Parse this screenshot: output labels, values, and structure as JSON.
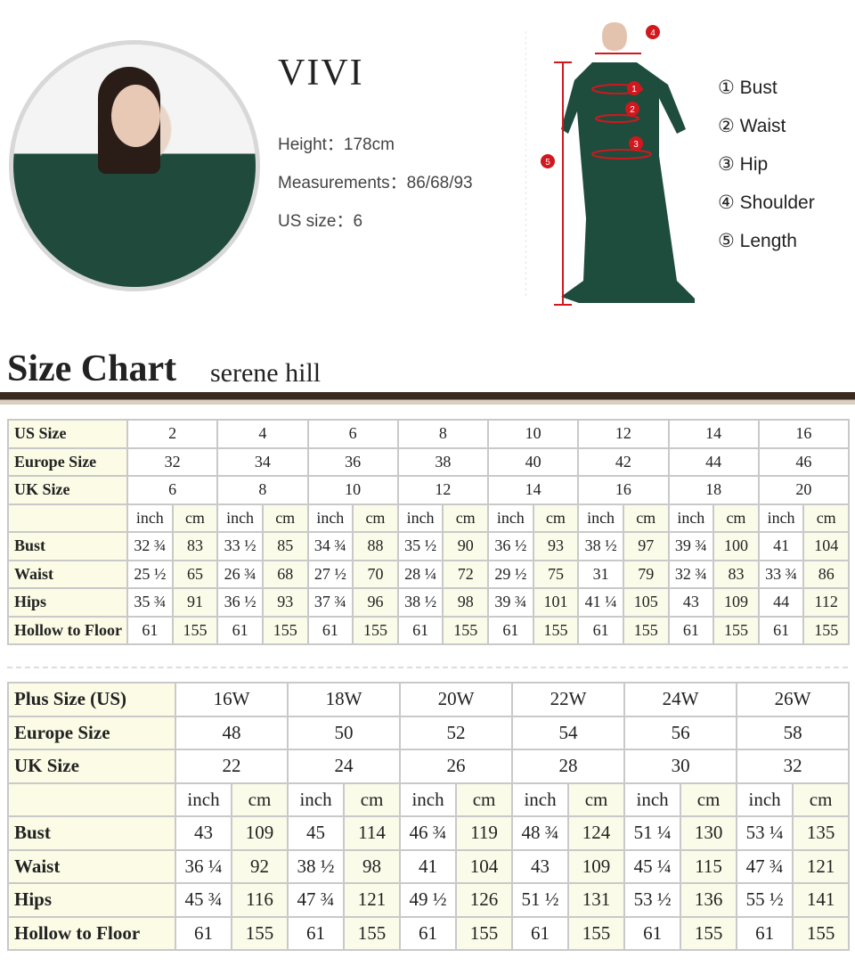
{
  "model": {
    "name": "VIVI",
    "height": "Height：178cm",
    "measurements": "Measurements：86/68/93",
    "us_size": "US size：6"
  },
  "measure_legend": [
    "① Bust",
    "② Waist",
    "③ Hip",
    "④ Shoulder",
    "⑤ Length"
  ],
  "figure_markers": [
    "1",
    "2",
    "3",
    "4",
    "5"
  ],
  "accent_color": "#d0181e",
  "size_chart": {
    "title": "Size Chart",
    "subtitle": "serene hill"
  },
  "standard_table": {
    "size_rows": [
      {
        "label": "US Size",
        "values": [
          "2",
          "4",
          "6",
          "8",
          "10",
          "12",
          "14",
          "16"
        ]
      },
      {
        "label": "Europe Size",
        "values": [
          "32",
          "34",
          "36",
          "38",
          "40",
          "42",
          "44",
          "46"
        ]
      },
      {
        "label": "UK Size",
        "values": [
          "6",
          "8",
          "10",
          "12",
          "14",
          "16",
          "18",
          "20"
        ]
      }
    ],
    "unit_row": [
      "inch",
      "cm"
    ],
    "measure_rows": [
      {
        "label": "Bust",
        "values": [
          "32 ¾",
          "83",
          "33 ½",
          "85",
          "34 ¾",
          "88",
          "35 ½",
          "90",
          "36 ½",
          "93",
          "38 ½",
          "97",
          "39 ¾",
          "100",
          "41",
          "104"
        ]
      },
      {
        "label": "Waist",
        "values": [
          "25 ½",
          "65",
          "26 ¾",
          "68",
          "27 ½",
          "70",
          "28 ¼",
          "72",
          "29 ½",
          "75",
          "31",
          "79",
          "32 ¾",
          "83",
          "33 ¾",
          "86"
        ]
      },
      {
        "label": "Hips",
        "values": [
          "35 ¾",
          "91",
          "36 ½",
          "93",
          "37 ¾",
          "96",
          "38 ½",
          "98",
          "39 ¾",
          "101",
          "41 ¼",
          "105",
          "43",
          "109",
          "44",
          "112"
        ]
      },
      {
        "label": "Hollow to Floor",
        "values": [
          "61",
          "155",
          "61",
          "155",
          "61",
          "155",
          "61",
          "155",
          "61",
          "155",
          "61",
          "155",
          "61",
          "155",
          "61",
          "155"
        ]
      }
    ]
  },
  "plus_table": {
    "size_rows": [
      {
        "label": "Plus Size (US)",
        "values": [
          "16W",
          "18W",
          "20W",
          "22W",
          "24W",
          "26W"
        ]
      },
      {
        "label": "Europe Size",
        "values": [
          "48",
          "50",
          "52",
          "54",
          "56",
          "58"
        ]
      },
      {
        "label": "UK Size",
        "values": [
          "22",
          "24",
          "26",
          "28",
          "30",
          "32"
        ]
      }
    ],
    "unit_row": [
      "inch",
      "cm"
    ],
    "measure_rows": [
      {
        "label": "Bust",
        "values": [
          "43",
          "109",
          "45",
          "114",
          "46 ¾",
          "119",
          "48 ¾",
          "124",
          "51 ¼",
          "130",
          "53 ¼",
          "135"
        ]
      },
      {
        "label": "Waist",
        "values": [
          "36 ¼",
          "92",
          "38 ½",
          "98",
          "41",
          "104",
          "43",
          "109",
          "45 ¼",
          "115",
          "47 ¾",
          "121"
        ]
      },
      {
        "label": "Hips",
        "values": [
          "45 ¾",
          "116",
          "47 ¾",
          "121",
          "49 ½",
          "126",
          "51 ½",
          "131",
          "53 ½",
          "136",
          "55 ½",
          "141"
        ]
      },
      {
        "label": "Hollow to Floor",
        "values": [
          "61",
          "155",
          "61",
          "155",
          "61",
          "155",
          "61",
          "155",
          "61",
          "155",
          "61",
          "155"
        ]
      }
    ]
  }
}
